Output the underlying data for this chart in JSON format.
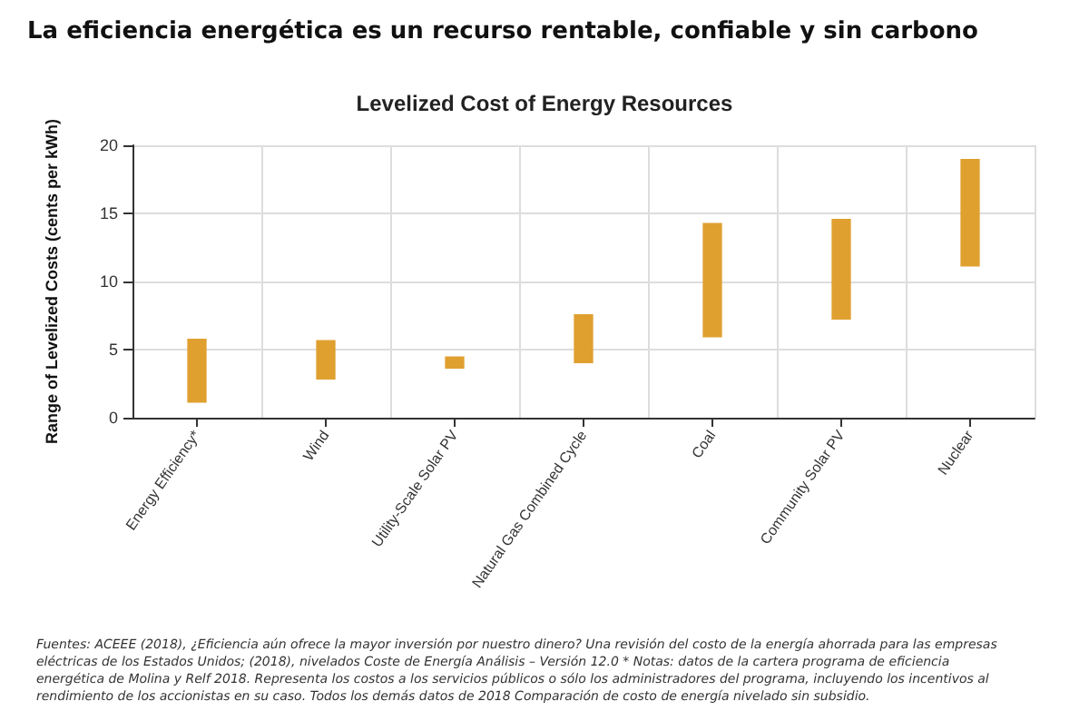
{
  "chart_data": {
    "type": "bar",
    "title": "La eficiencia energética es un recurso rentable, confiable y sin carbono",
    "subtitle": "Levelized Cost of Energy Resources",
    "ylabel": "Range of Levelized Costs (cents per kWh)",
    "categories": [
      "Energy Efficiency*",
      "Wind",
      "Utility-Scale Solar PV",
      "Natural Gas Combined Cycle",
      "Coal",
      "Community Solar PV",
      "Nuclear"
    ],
    "base": [
      1.1,
      2.8,
      3.6,
      4.0,
      5.9,
      7.2,
      11.1
    ],
    "values": [
      4.7,
      2.9,
      0.9,
      3.6,
      8.4,
      7.4,
      7.9
    ],
    "color": "#e0a030",
    "ylim": [
      0,
      20
    ],
    "yticks": [
      0,
      5,
      10,
      15,
      20
    ],
    "grid": true,
    "annotations": [
      "Fuentes: ACEEE (2018), ¿Eficiencia aún ofrece la mayor inversión por nuestro dinero? Una revisión del costo de la energía ahorrada para las empresas eléctricas de los Estados Unidos; (2018), nivelados Coste de Energía Análisis – Versión 12.0 * Notas: datos de la cartera programa de eficiencia energética de Molina y Relf 2018. Representa los costos a los servicios públicos o sólo los administradores del programa, incluyendo los incentivos al rendimiento de los accionistas en su caso. Todos los demás datos de 2018 Comparación de costo de energía nivelado sin subsidio."
    ]
  }
}
